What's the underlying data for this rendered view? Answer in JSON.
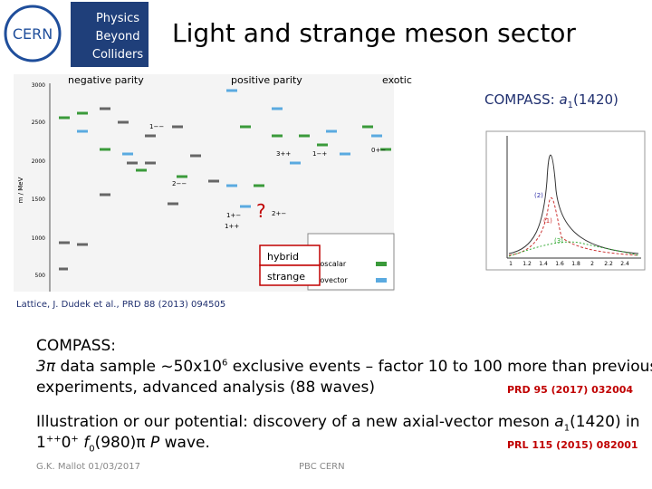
{
  "header": {
    "logo_left": "CERN",
    "logo_right": [
      "Physics",
      "Beyond",
      "Colliders"
    ],
    "title": "Light and strange meson sector"
  },
  "spectrum": {
    "column_labels": [
      "negative parity",
      "positive parity",
      "exotic"
    ],
    "y_axis_label": "m / MeV",
    "y_ticks": [
      "3000",
      "2500",
      "2000",
      "1500",
      "1000",
      "500"
    ],
    "quantum_labels": [
      "1−−",
      "2−−",
      "3++",
      "1++",
      "1+−",
      "1−+",
      "0+−",
      "2+−"
    ],
    "question": "?",
    "hybrid": "hybrid",
    "strange": "strange",
    "legend": [
      "isoscalar",
      "isovector"
    ],
    "citation": "Lattice, J. Dudek et al., PRD 88 (2013) 094505"
  },
  "compass_plot": {
    "label": "COMPASS: ",
    "symbol": "a",
    "sub": "1",
    "mass": "(1420)",
    "curve_labels": [
      "(1)",
      "(2)",
      "(3)"
    ],
    "x_ticks": [
      "1",
      "1.2",
      "1.4",
      "1.6",
      "1.8",
      "2",
      "2.2",
      "2.4"
    ]
  },
  "block1": {
    "heading": "COMPASS:",
    "italic": "3π",
    "text1": " data sample ~50x10",
    "sup": "6",
    "text2": " exclusive events – factor 10 to 100 more than previous",
    "line2": "experiments, advanced analysis (88 waves)",
    "ref": "PRD 95 (2017) 032004"
  },
  "block2": {
    "text1": "Illustration or our potential:  discovery of a new axial-vector meson ",
    "a": "a",
    "sub1": "1",
    "text2": "(1420) in",
    "l2a": "1",
    "l2sup1": "++",
    "l2b": "0",
    "l2sup2": "+",
    "l2f": "f",
    "l2sub": "0",
    "l2c": "(980)π ",
    "l2p": "P",
    "l2d": " wave.",
    "ref": "PRL 115 (2015) 082001"
  },
  "footer": {
    "author": "G.K. Mallot 01/03/2017",
    "center": "PBC CERN"
  }
}
